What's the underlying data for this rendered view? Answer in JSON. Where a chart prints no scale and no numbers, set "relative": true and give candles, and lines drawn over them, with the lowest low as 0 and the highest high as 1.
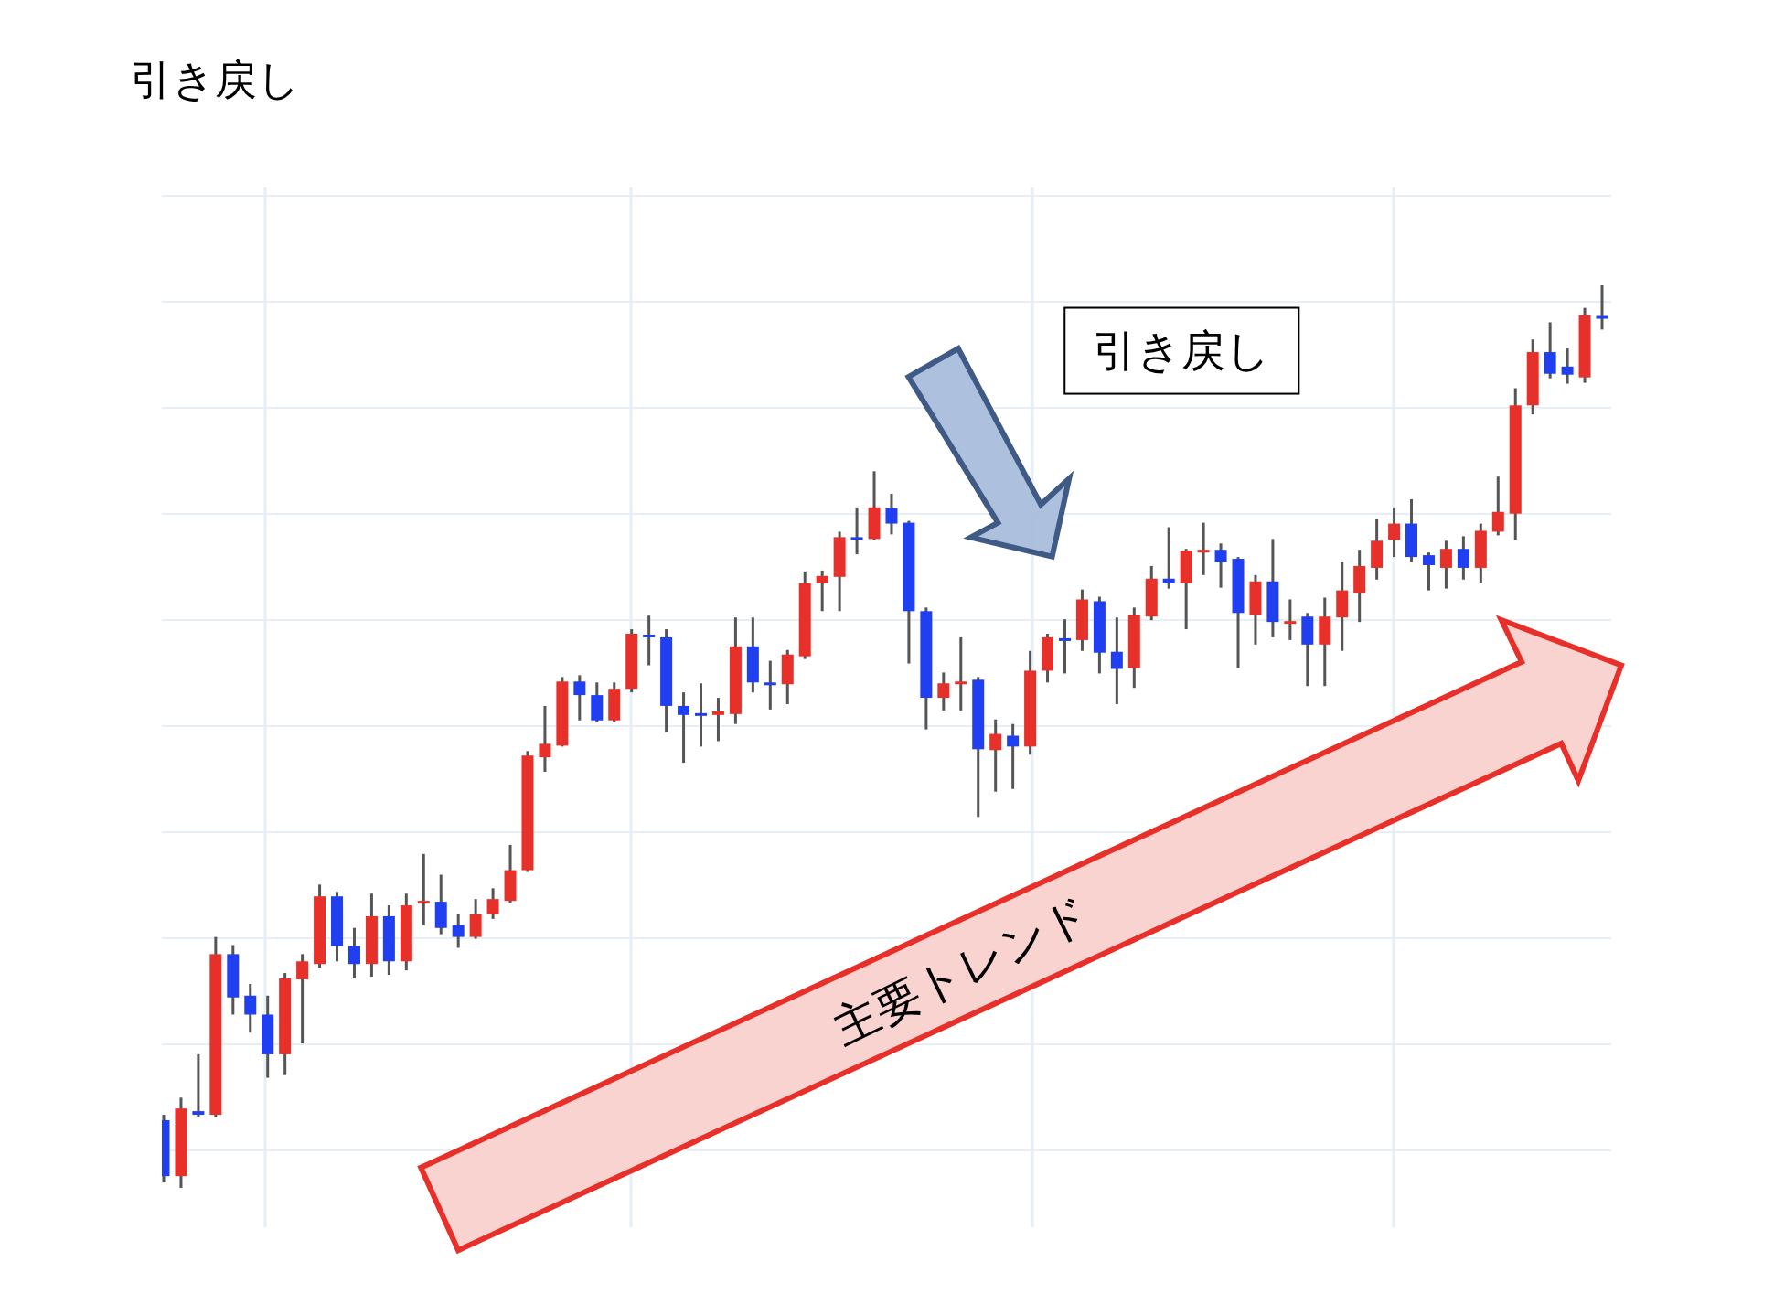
{
  "chart_data": {
    "type": "candlestick",
    "title": "引き戻し",
    "relative": true,
    "grid": true,
    "categories": [
      null,
      null,
      null,
      null,
      null,
      null,
      null,
      null,
      null,
      null,
      null,
      null,
      null,
      null,
      null,
      null,
      null,
      null,
      null,
      null,
      null,
      null,
      null,
      null,
      null,
      null,
      null,
      null,
      null,
      null,
      null,
      null,
      null,
      null,
      null,
      null,
      null,
      null,
      null,
      null,
      null,
      null,
      null,
      null,
      null,
      null,
      null,
      null,
      null,
      null,
      null,
      null,
      null,
      null,
      null,
      null,
      null,
      null,
      null,
      null,
      null,
      null,
      null,
      null,
      null,
      null,
      null,
      null,
      null,
      null,
      null,
      null,
      null,
      null,
      null,
      null,
      null,
      null,
      null,
      null,
      null,
      null,
      null,
      null
    ],
    "ohlc": [
      [
        0.075,
        0.081,
        0.006,
        0.013
      ],
      [
        0.013,
        0.1,
        0,
        0.088
      ],
      [
        0.085,
        0.148,
        0.079,
        0.081
      ],
      [
        0.081,
        0.278,
        0.078,
        0.259
      ],
      [
        0.259,
        0.269,
        0.192,
        0.211
      ],
      [
        0.213,
        0.226,
        0.172,
        0.192
      ],
      [
        0.192,
        0.213,
        0.122,
        0.148
      ],
      [
        0.148,
        0.238,
        0.125,
        0.232
      ],
      [
        0.231,
        0.259,
        0.16,
        0.251
      ],
      [
        0.248,
        0.336,
        0.244,
        0.323
      ],
      [
        0.323,
        0.328,
        0.251,
        0.268
      ],
      [
        0.268,
        0.288,
        0.232,
        0.248
      ],
      [
        0.248,
        0.326,
        0.234,
        0.301
      ],
      [
        0.301,
        0.313,
        0.236,
        0.251
      ],
      [
        0.251,
        0.326,
        0.241,
        0.313
      ],
      [
        0.316,
        0.37,
        0.291,
        0.318
      ],
      [
        0.317,
        0.347,
        0.281,
        0.288
      ],
      [
        0.291,
        0.303,
        0.266,
        0.278
      ],
      [
        0.278,
        0.32,
        0.276,
        0.303
      ],
      [
        0.303,
        0.332,
        0.298,
        0.32
      ],
      [
        0.318,
        0.38,
        0.316,
        0.352
      ],
      [
        0.352,
        0.484,
        0.35,
        0.479
      ],
      [
        0.477,
        0.534,
        0.461,
        0.492
      ],
      [
        0.49,
        0.566,
        0.489,
        0.561
      ],
      [
        0.561,
        0.568,
        0.518,
        0.546
      ],
      [
        0.546,
        0.56,
        0.516,
        0.518
      ],
      [
        0.518,
        0.56,
        0.516,
        0.553
      ],
      [
        0.553,
        0.619,
        0.549,
        0.614
      ],
      [
        0.613,
        0.634,
        0.579,
        0.61
      ],
      [
        0.61,
        0.619,
        0.505,
        0.534
      ],
      [
        0.534,
        0.549,
        0.471,
        0.524
      ],
      [
        0.526,
        0.559,
        0.489,
        0.523
      ],
      [
        0.524,
        0.543,
        0.495,
        0.528
      ],
      [
        0.525,
        0.632,
        0.514,
        0.6
      ],
      [
        0.6,
        0.632,
        0.549,
        0.56
      ],
      [
        0.56,
        0.584,
        0.53,
        0.558
      ],
      [
        0.558,
        0.596,
        0.536,
        0.591
      ],
      [
        0.589,
        0.683,
        0.586,
        0.67
      ],
      [
        0.67,
        0.684,
        0.639,
        0.678
      ],
      [
        0.677,
        0.727,
        0.639,
        0.721
      ],
      [
        0.721,
        0.754,
        0.702,
        0.718
      ],
      [
        0.719,
        0.794,
        0.718,
        0.754
      ],
      [
        0.753,
        0.769,
        0.724,
        0.736
      ],
      [
        0.737,
        0.739,
        0.581,
        0.639
      ],
      [
        0.639,
        0.643,
        0.508,
        0.543
      ],
      [
        0.543,
        0.571,
        0.529,
        0.559
      ],
      [
        0.558,
        0.61,
        0.529,
        0.561
      ],
      [
        0.563,
        0.566,
        0.411,
        0.486
      ],
      [
        0.485,
        0.519,
        0.439,
        0.503
      ],
      [
        0.501,
        0.514,
        0.442,
        0.489
      ],
      [
        0.489,
        0.595,
        0.48,
        0.573
      ],
      [
        0.573,
        0.614,
        0.56,
        0.61
      ],
      [
        0.609,
        0.63,
        0.57,
        0.607
      ],
      [
        0.607,
        0.663,
        0.595,
        0.652
      ],
      [
        0.65,
        0.655,
        0.57,
        0.593
      ],
      [
        0.594,
        0.632,
        0.536,
        0.575
      ],
      [
        0.576,
        0.643,
        0.554,
        0.635
      ],
      [
        0.633,
        0.689,
        0.629,
        0.675
      ],
      [
        0.675,
        0.732,
        0.664,
        0.67
      ],
      [
        0.67,
        0.708,
        0.619,
        0.706
      ],
      [
        0.704,
        0.737,
        0.679,
        0.707
      ],
      [
        0.707,
        0.714,
        0.665,
        0.693
      ],
      [
        0.697,
        0.699,
        0.576,
        0.637
      ],
      [
        0.635,
        0.679,
        0.602,
        0.672
      ],
      [
        0.672,
        0.719,
        0.61,
        0.627
      ],
      [
        0.625,
        0.652,
        0.607,
        0.628
      ],
      [
        0.633,
        0.637,
        0.556,
        0.602
      ],
      [
        0.602,
        0.654,
        0.556,
        0.633
      ],
      [
        0.632,
        0.693,
        0.595,
        0.662
      ],
      [
        0.659,
        0.707,
        0.627,
        0.689
      ],
      [
        0.687,
        0.741,
        0.674,
        0.717
      ],
      [
        0.718,
        0.754,
        0.699,
        0.736
      ],
      [
        0.736,
        0.763,
        0.693,
        0.699
      ],
      [
        0.701,
        0.704,
        0.662,
        0.69
      ],
      [
        0.687,
        0.717,
        0.664,
        0.708
      ],
      [
        0.708,
        0.722,
        0.674,
        0.687
      ],
      [
        0.687,
        0.736,
        0.67,
        0.728
      ],
      [
        0.727,
        0.788,
        0.723,
        0.749
      ],
      [
        0.747,
        0.886,
        0.718,
        0.867
      ],
      [
        0.867,
        0.94,
        0.857,
        0.926
      ],
      [
        0.926,
        0.959,
        0.897,
        0.902
      ],
      [
        0.91,
        0.93,
        0.891,
        0.901
      ],
      [
        0.898,
        0.975,
        0.892,
        0.967
      ],
      [
        0.966,
        1,
        0.951,
        0.964
      ]
    ],
    "colors": [
      "#1f3ff0",
      "#e8302a",
      "#1f3ff0",
      "#e8302a",
      "#1f3ff0",
      "#1f3ff0",
      "#1f3ff0",
      "#e8302a",
      "#e8302a",
      "#e8302a",
      "#1f3ff0",
      "#1f3ff0",
      "#e8302a",
      "#1f3ff0",
      "#e8302a",
      "#e8302a",
      "#1f3ff0",
      "#1f3ff0",
      "#e8302a",
      "#e8302a",
      "#e8302a",
      "#e8302a",
      "#e8302a",
      "#e8302a",
      "#1f3ff0",
      "#1f3ff0",
      "#e8302a",
      "#e8302a",
      "#1f3ff0",
      "#1f3ff0",
      "#1f3ff0",
      "#1f3ff0",
      "#e8302a",
      "#e8302a",
      "#1f3ff0",
      "#1f3ff0",
      "#e8302a",
      "#e8302a",
      "#e8302a",
      "#e8302a",
      "#1f3ff0",
      "#e8302a",
      "#1f3ff0",
      "#1f3ff0",
      "#1f3ff0",
      "#e8302a",
      "#e8302a",
      "#1f3ff0",
      "#e8302a",
      "#1f3ff0",
      "#e8302a",
      "#e8302a",
      "#1f3ff0",
      "#e8302a",
      "#1f3ff0",
      "#1f3ff0",
      "#e8302a",
      "#e8302a",
      "#1f3ff0",
      "#e8302a",
      "#e8302a",
      "#1f3ff0",
      "#1f3ff0",
      "#e8302a",
      "#1f3ff0",
      "#e8302a",
      "#1f3ff0",
      "#e8302a",
      "#e8302a",
      "#e8302a",
      "#e8302a",
      "#e8302a",
      "#1f3ff0",
      "#1f3ff0",
      "#e8302a",
      "#1f3ff0",
      "#e8302a",
      "#e8302a",
      "#e8302a",
      "#e8302a",
      "#1f3ff0",
      "#1f3ff0",
      "#e8302a",
      "#1f3ff0"
    ],
    "annotations": [
      "引き戻し",
      "主要トレンド"
    ]
  }
}
